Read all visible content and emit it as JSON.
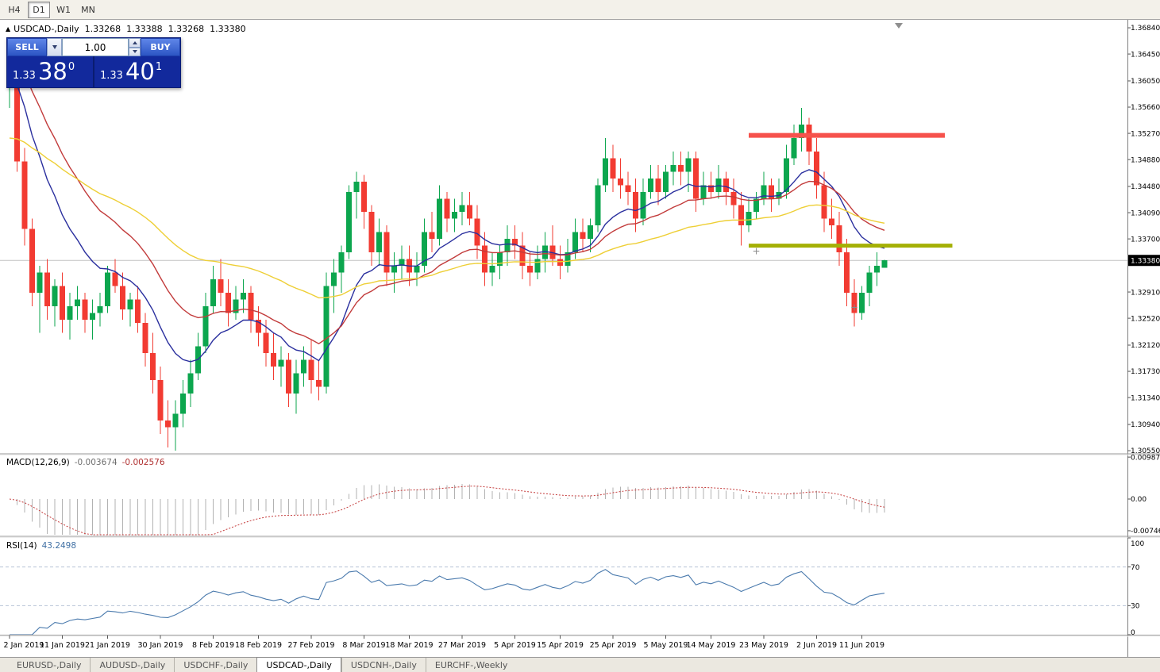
{
  "toolbar": {
    "timeframes": [
      {
        "label": "H4",
        "active": false
      },
      {
        "label": "D1",
        "active": true
      },
      {
        "label": "W1",
        "active": false
      },
      {
        "label": "MN",
        "active": false
      }
    ]
  },
  "chart_header": {
    "arrow": "▲",
    "symbol": "USDCAD-,Daily",
    "open": "1.33268",
    "high": "1.33388",
    "low": "1.33268",
    "close": "1.33380"
  },
  "one_click": {
    "sell_label": "SELL",
    "buy_label": "BUY",
    "volume": "1.00",
    "sell_price_head": "1.33",
    "sell_price_big": "38",
    "sell_price_sup": "0",
    "buy_price_head": "1.33",
    "buy_price_big": "40",
    "buy_price_sup": "1"
  },
  "price_axis": {
    "labels": [
      "1.36840",
      "1.36450",
      "1.36050",
      "1.35660",
      "1.35270",
      "1.34880",
      "1.34480",
      "1.34090",
      "1.33700",
      "1.32910",
      "1.32520",
      "1.32120",
      "1.31730",
      "1.31340",
      "1.30940",
      "1.30550"
    ],
    "current": "1.33380"
  },
  "indicators": {
    "macd": {
      "name": "MACD(12,26,9)",
      "value_main": "-0.003674",
      "value_signal": "-0.002576",
      "fast": 12,
      "slow": 26,
      "signal": 9,
      "axis_labels": [
        "0.009874",
        "0.00",
        "-0.00746"
      ],
      "histogram_color": "#b2b2b2",
      "signal_color": "#c43b3b"
    },
    "rsi": {
      "name": "RSI(14)",
      "value": "43.2498",
      "period": 14,
      "axis_labels": [
        "100",
        "70",
        "30",
        "0"
      ],
      "levels": [
        70,
        30
      ],
      "line_color": "#4a7aad",
      "level_color": "#b7c3d6"
    }
  },
  "x_axis": {
    "labels": [
      [
        0,
        "2 Jan 2019"
      ],
      [
        7,
        "11 Jan 2019"
      ],
      [
        13,
        "21 Jan 2019"
      ],
      [
        20,
        "30 Jan 2019"
      ],
      [
        27,
        "8 Feb 2019"
      ],
      [
        33,
        "18 Feb 2019"
      ],
      [
        40,
        "27 Feb 2019"
      ],
      [
        47,
        "8 Mar 2019"
      ],
      [
        53,
        "18 Mar 2019"
      ],
      [
        60,
        "27 Mar 2019"
      ],
      [
        67,
        "5 Apr 2019"
      ],
      [
        73,
        "15 Apr 2019"
      ],
      [
        80,
        "25 Apr 2019"
      ],
      [
        87,
        "5 May 2019"
      ],
      [
        93,
        "14 May 2019"
      ],
      [
        100,
        "23 May 2019"
      ],
      [
        107,
        "2 Jun 2019"
      ],
      [
        113,
        "11 Jun 2019"
      ]
    ]
  },
  "tabs": [
    {
      "label": "EURUSD-,Daily",
      "active": false
    },
    {
      "label": "AUDUSD-,Daily",
      "active": false
    },
    {
      "label": "USDCHF-,Daily",
      "active": false
    },
    {
      "label": "USDCAD-,Daily",
      "active": true
    },
    {
      "label": "USDCNH-,Daily",
      "active": false
    },
    {
      "label": "EURCHF-,Weekly",
      "active": false
    }
  ],
  "chart_data": {
    "type": "candlestick",
    "title": "USDCAD-,Daily",
    "timeframe": "Daily",
    "price_range": [
      1.30515,
      1.36923
    ],
    "bull_color": "#0ca64e",
    "bear_color": "#f23b32",
    "candles": [
      [
        1.36,
        1.3665,
        1.3565,
        1.3655
      ],
      [
        1.3655,
        1.3665,
        1.347,
        1.3485
      ],
      [
        1.3485,
        1.3505,
        1.336,
        1.3385
      ],
      [
        1.3385,
        1.34,
        1.327,
        1.329
      ],
      [
        1.329,
        1.333,
        1.323,
        1.332
      ],
      [
        1.332,
        1.334,
        1.325,
        1.327
      ],
      [
        1.327,
        1.331,
        1.324,
        1.33
      ],
      [
        1.33,
        1.332,
        1.323,
        1.325
      ],
      [
        1.325,
        1.329,
        1.322,
        1.327
      ],
      [
        1.327,
        1.33,
        1.325,
        1.328
      ],
      [
        1.328,
        1.329,
        1.323,
        1.325
      ],
      [
        1.325,
        1.328,
        1.322,
        1.326
      ],
      [
        1.326,
        1.329,
        1.324,
        1.327
      ],
      [
        1.327,
        1.333,
        1.326,
        1.332
      ],
      [
        1.332,
        1.334,
        1.329,
        1.33
      ],
      [
        1.33,
        1.332,
        1.325,
        1.3265
      ],
      [
        1.3265,
        1.329,
        1.324,
        1.328
      ],
      [
        1.328,
        1.33,
        1.323,
        1.3245
      ],
      [
        1.3245,
        1.326,
        1.318,
        1.32
      ],
      [
        1.32,
        1.323,
        1.314,
        1.316
      ],
      [
        1.316,
        1.318,
        1.308,
        1.31
      ],
      [
        1.31,
        1.313,
        1.306,
        1.309
      ],
      [
        1.309,
        1.313,
        1.3055,
        1.311
      ],
      [
        1.311,
        1.316,
        1.309,
        1.314
      ],
      [
        1.314,
        1.319,
        1.312,
        1.317
      ],
      [
        1.317,
        1.323,
        1.316,
        1.321
      ],
      [
        1.321,
        1.329,
        1.32,
        1.327
      ],
      [
        1.327,
        1.333,
        1.326,
        1.331
      ],
      [
        1.331,
        1.334,
        1.327,
        1.329
      ],
      [
        1.329,
        1.331,
        1.324,
        1.326
      ],
      [
        1.326,
        1.33,
        1.325,
        1.328
      ],
      [
        1.328,
        1.331,
        1.326,
        1.329
      ],
      [
        1.329,
        1.33,
        1.323,
        1.325
      ],
      [
        1.325,
        1.327,
        1.321,
        1.323
      ],
      [
        1.323,
        1.325,
        1.318,
        1.32
      ],
      [
        1.32,
        1.323,
        1.316,
        1.318
      ],
      [
        1.318,
        1.321,
        1.315,
        1.319
      ],
      [
        1.319,
        1.32,
        1.312,
        1.314
      ],
      [
        1.314,
        1.319,
        1.311,
        1.317
      ],
      [
        1.317,
        1.321,
        1.315,
        1.319
      ],
      [
        1.319,
        1.322,
        1.314,
        1.316
      ],
      [
        1.316,
        1.319,
        1.313,
        1.315
      ],
      [
        1.315,
        1.332,
        1.314,
        1.33
      ],
      [
        1.33,
        1.334,
        1.326,
        1.332
      ],
      [
        1.332,
        1.336,
        1.329,
        1.335
      ],
      [
        1.335,
        1.345,
        1.334,
        1.344
      ],
      [
        1.344,
        1.347,
        1.34,
        1.3455
      ],
      [
        1.3455,
        1.3465,
        1.3385,
        1.341
      ],
      [
        1.341,
        1.342,
        1.333,
        1.335
      ],
      [
        1.335,
        1.34,
        1.333,
        1.338
      ],
      [
        1.338,
        1.339,
        1.33,
        1.332
      ],
      [
        1.332,
        1.335,
        1.329,
        1.333
      ],
      [
        1.333,
        1.336,
        1.331,
        1.334
      ],
      [
        1.334,
        1.336,
        1.33,
        1.332
      ],
      [
        1.332,
        1.335,
        1.33,
        1.333
      ],
      [
        1.333,
        1.34,
        1.332,
        1.338
      ],
      [
        1.338,
        1.341,
        1.335,
        1.337
      ],
      [
        1.337,
        1.345,
        1.336,
        1.343
      ],
      [
        1.343,
        1.344,
        1.338,
        1.34
      ],
      [
        1.34,
        1.343,
        1.338,
        1.341
      ],
      [
        1.341,
        1.344,
        1.339,
        1.342
      ],
      [
        1.342,
        1.344,
        1.339,
        1.34
      ],
      [
        1.34,
        1.342,
        1.334,
        1.336
      ],
      [
        1.336,
        1.338,
        1.33,
        1.332
      ],
      [
        1.332,
        1.335,
        1.33,
        1.333
      ],
      [
        1.333,
        1.336,
        1.331,
        1.335
      ],
      [
        1.335,
        1.339,
        1.333,
        1.337
      ],
      [
        1.337,
        1.339,
        1.334,
        1.336
      ],
      [
        1.336,
        1.338,
        1.331,
        1.333
      ],
      [
        1.333,
        1.335,
        1.33,
        1.332
      ],
      [
        1.332,
        1.336,
        1.331,
        1.334
      ],
      [
        1.334,
        1.338,
        1.332,
        1.336
      ],
      [
        1.336,
        1.339,
        1.333,
        1.334
      ],
      [
        1.334,
        1.336,
        1.331,
        1.333
      ],
      [
        1.333,
        1.337,
        1.332,
        1.335
      ],
      [
        1.335,
        1.34,
        1.334,
        1.338
      ],
      [
        1.338,
        1.34,
        1.335,
        1.337
      ],
      [
        1.337,
        1.34,
        1.335,
        1.339
      ],
      [
        1.339,
        1.346,
        1.338,
        1.345
      ],
      [
        1.345,
        1.352,
        1.344,
        1.349
      ],
      [
        1.349,
        1.351,
        1.344,
        1.346
      ],
      [
        1.346,
        1.349,
        1.343,
        1.345
      ],
      [
        1.345,
        1.347,
        1.342,
        1.344
      ],
      [
        1.344,
        1.346,
        1.338,
        1.34
      ],
      [
        1.34,
        1.346,
        1.339,
        1.344
      ],
      [
        1.344,
        1.348,
        1.343,
        1.346
      ],
      [
        1.346,
        1.348,
        1.342,
        1.344
      ],
      [
        1.344,
        1.348,
        1.343,
        1.347
      ],
      [
        1.347,
        1.35,
        1.345,
        1.348
      ],
      [
        1.348,
        1.35,
        1.345,
        1.347
      ],
      [
        1.347,
        1.35,
        1.344,
        1.349
      ],
      [
        1.349,
        1.35,
        1.341,
        1.343
      ],
      [
        1.343,
        1.347,
        1.342,
        1.345
      ],
      [
        1.345,
        1.347,
        1.343,
        1.344
      ],
      [
        1.344,
        1.348,
        1.343,
        1.346
      ],
      [
        1.346,
        1.347,
        1.342,
        1.344
      ],
      [
        1.344,
        1.346,
        1.34,
        1.342
      ],
      [
        1.342,
        1.344,
        1.336,
        1.339
      ],
      [
        1.339,
        1.343,
        1.338,
        1.341
      ],
      [
        1.341,
        1.344,
        1.34,
        1.343
      ],
      [
        1.343,
        1.347,
        1.342,
        1.345
      ],
      [
        1.345,
        1.346,
        1.341,
        1.343
      ],
      [
        1.343,
        1.346,
        1.342,
        1.344
      ],
      [
        1.344,
        1.351,
        1.343,
        1.349
      ],
      [
        1.349,
        1.354,
        1.348,
        1.352
      ],
      [
        1.352,
        1.3565,
        1.35,
        1.354
      ],
      [
        1.354,
        1.355,
        1.348,
        1.35
      ],
      [
        1.35,
        1.352,
        1.343,
        1.345
      ],
      [
        1.345,
        1.347,
        1.338,
        1.34
      ],
      [
        1.34,
        1.343,
        1.337,
        1.339
      ],
      [
        1.339,
        1.341,
        1.333,
        1.335
      ],
      [
        1.335,
        1.337,
        1.327,
        1.329
      ],
      [
        1.329,
        1.331,
        1.324,
        1.326
      ],
      [
        1.326,
        1.33,
        1.325,
        1.329
      ],
      [
        1.329,
        1.333,
        1.327,
        1.332
      ],
      [
        1.332,
        1.335,
        1.33,
        1.333
      ],
      [
        1.33268,
        1.33388,
        1.33268,
        1.3338
      ]
    ],
    "moving_averages": [
      {
        "type": "ema",
        "period": 12,
        "color": "#2a2f9e",
        "seed": 1.362
      },
      {
        "type": "ema",
        "period": 22,
        "color": "#c23b3b",
        "seed": 1.3655
      },
      {
        "type": "ema",
        "period": 52,
        "color": "#eecf36",
        "seed": 1.352
      }
    ],
    "objects": {
      "resistance_line": {
        "price": 1.3524,
        "from_bar": 98,
        "to_bar": 124,
        "color": "#f6524c",
        "width": 6
      },
      "support_line": {
        "price": 1.336,
        "from_bar": 98,
        "to_bar": 125,
        "color": "#a4b005",
        "width": 5
      },
      "markers": [
        {
          "bar": 99,
          "price": 1.3352,
          "glyph": "+"
        },
        {
          "bar": 112,
          "price": 1.3268,
          "glyph": "+"
        }
      ]
    }
  }
}
